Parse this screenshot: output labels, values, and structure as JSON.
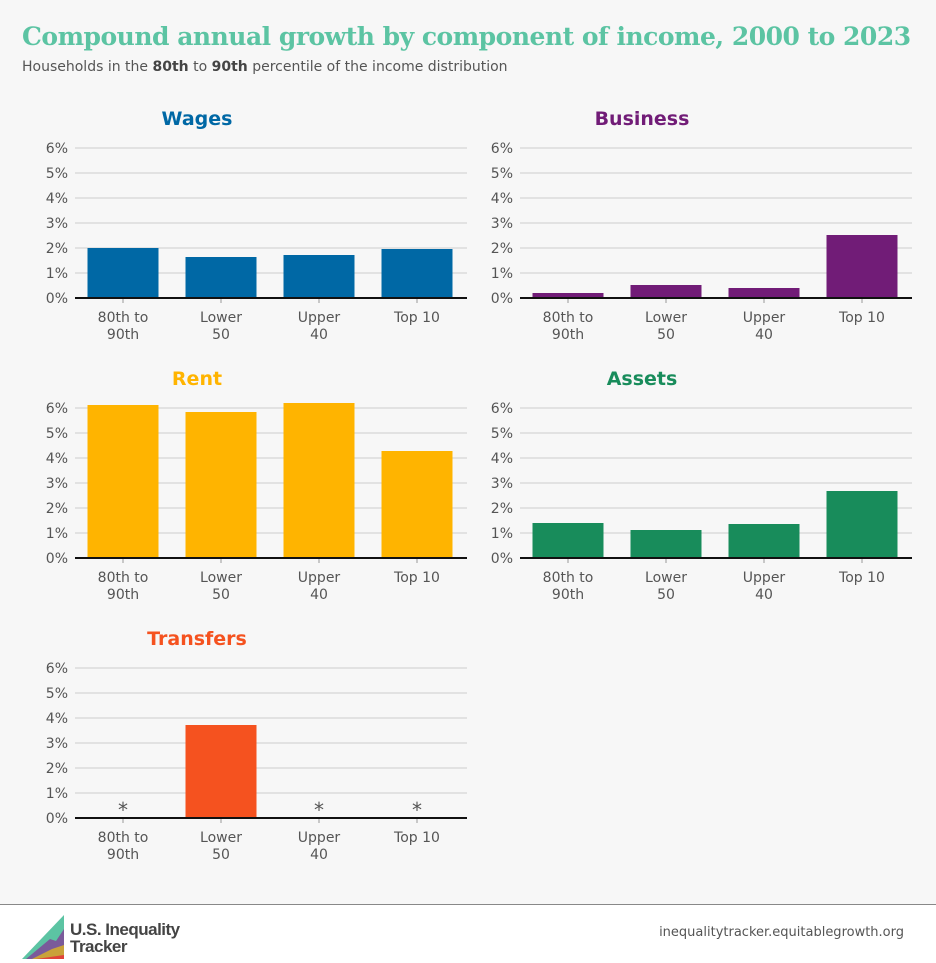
{
  "title": "Compound annual growth by component of income, 2000 to 2023",
  "subtitle": {
    "pre": "Households in the ",
    "b1": "80th",
    "mid": " to ",
    "b2": "90th",
    "post": " percentile of the income distribution"
  },
  "footer": {
    "logo_text_1": "U.S. Inequality",
    "logo_text_2": "Tracker",
    "url": "inequalitytracker.equitablegrowth.org"
  },
  "chart_data": [
    {
      "type": "bar",
      "title": "Wages",
      "color": "#0068a5",
      "categories": [
        "80th to 90th",
        "Lower 50",
        "Upper 40",
        "Top 10"
      ],
      "values": [
        2.0,
        1.64,
        1.72,
        1.96
      ],
      "ylim": [
        0,
        6
      ],
      "yticks": [
        "0%",
        "1%",
        "2%",
        "3%",
        "4%",
        "5%",
        "6%"
      ],
      "grid": true
    },
    {
      "type": "bar",
      "title": "Business",
      "color": "#711c77",
      "categories": [
        "80th to 90th",
        "Lower 50",
        "Upper 40",
        "Top 10"
      ],
      "values": [
        0.2,
        0.52,
        0.4,
        2.52
      ],
      "ylim": [
        0,
        6
      ],
      "yticks": [
        "0%",
        "1%",
        "2%",
        "3%",
        "4%",
        "5%",
        "6%"
      ],
      "grid": true
    },
    {
      "type": "bar",
      "title": "Rent",
      "color": "#ffb400",
      "categories": [
        "80th to 90th",
        "Lower 50",
        "Upper 40",
        "Top 10"
      ],
      "values": [
        6.12,
        5.84,
        6.2,
        4.28
      ],
      "ylim": [
        0,
        6
      ],
      "yticks": [
        "0%",
        "1%",
        "2%",
        "3%",
        "4%",
        "5%",
        "6%"
      ],
      "grid": true
    },
    {
      "type": "bar",
      "title": "Assets",
      "color": "#188c5b",
      "categories": [
        "80th to 90th",
        "Lower 50",
        "Upper 40",
        "Top 10"
      ],
      "values": [
        1.4,
        1.12,
        1.36,
        2.68
      ],
      "ylim": [
        0,
        6
      ],
      "yticks": [
        "0%",
        "1%",
        "2%",
        "3%",
        "4%",
        "5%",
        "6%"
      ],
      "grid": true
    },
    {
      "type": "bar",
      "title": "Transfers",
      "color": "#f5521f",
      "categories": [
        "80th to 90th",
        "Lower 50",
        "Upper 40",
        "Top 10"
      ],
      "values": [
        null,
        3.72,
        null,
        null
      ],
      "missing_label": "*",
      "ylim": [
        0,
        6
      ],
      "yticks": [
        "0%",
        "1%",
        "2%",
        "3%",
        "4%",
        "5%",
        "6%"
      ],
      "grid": true
    }
  ]
}
